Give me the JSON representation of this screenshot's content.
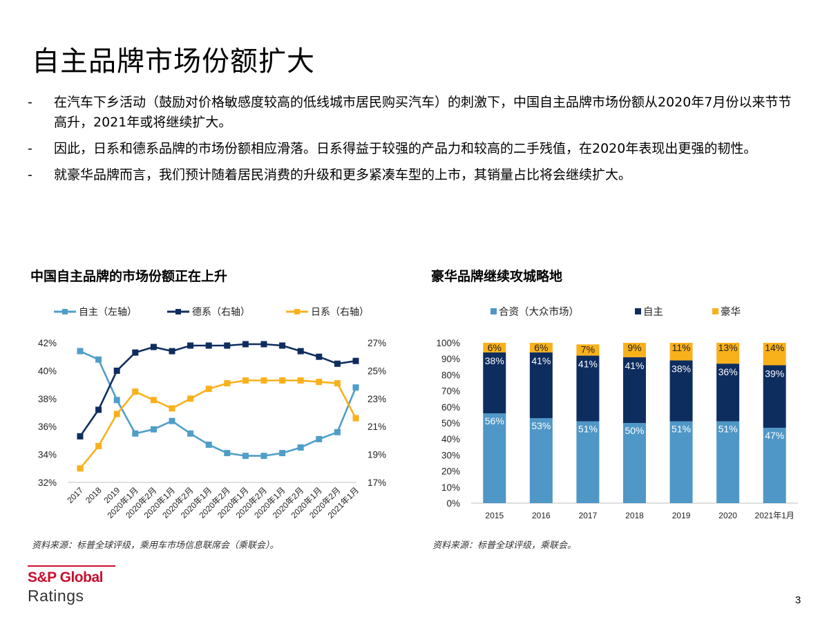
{
  "page": {
    "title": "自主品牌市场份额扩大",
    "bullets": [
      "在汽车下乡活动（鼓励对价格敏感度较高的低线城市居民购买汽车）的刺激下，中国自主品牌市场份额从2020年7月份以来节节高升，2021年或将继续扩大。",
      "因此，日系和德系品牌的市场份额相应滑落。日系得益于较强的产品力和较高的二手残值，在2020年表现出更强的韧性。",
      "就豪华品牌而言，我们预计随着居民消费的升级和更多紧凑车型的上市，其销量占比将会继续扩大。"
    ],
    "bullet_marker": "-",
    "page_number": "3",
    "logo": {
      "main": "S&P Global",
      "sub": "Ratings",
      "color": "#c8102e"
    }
  },
  "chart_data": [
    {
      "type": "line",
      "title": "中国自主品牌的市场份额正在上升",
      "source": "资料来源：标普全球评级，乘用车市场信息联席会（乘联会）。",
      "legend_position": "top",
      "categories": [
        "2017",
        "2018",
        "2019",
        "2020年1月",
        "2020年2月",
        "2020年1月",
        "2020年2月",
        "2020年1月",
        "2020年2月",
        "2020年1月",
        "2020年2月",
        "2020年1月",
        "2020年2月",
        "2020年1月",
        "2020年2月",
        "2021年1月"
      ],
      "ylim_left": [
        32,
        42
      ],
      "ylim_right": [
        17,
        27
      ],
      "yticks_left": [
        "32%",
        "34%",
        "36%",
        "38%",
        "40%",
        "42%"
      ],
      "yticks_right": [
        "17%",
        "19%",
        "21%",
        "23%",
        "25%",
        "27%"
      ],
      "grid": false,
      "series": [
        {
          "name": "自主（左轴）",
          "axis": "left",
          "color": "#4f9ec9",
          "values": [
            41.4,
            40.8,
            37.9,
            35.5,
            35.8,
            36.4,
            35.5,
            34.7,
            34.1,
            33.9,
            33.9,
            34.1,
            34.5,
            35.1,
            35.6,
            38.8
          ]
        },
        {
          "name": "德系（右轴）",
          "axis": "right",
          "color": "#0e2d5f",
          "values": [
            20.3,
            22.2,
            25.0,
            26.3,
            26.7,
            26.4,
            26.8,
            26.8,
            26.8,
            26.9,
            26.9,
            26.8,
            26.4,
            26.0,
            25.5,
            25.7
          ]
        },
        {
          "name": "日系（右轴）",
          "axis": "right",
          "color": "#f9b11b",
          "values": [
            18.0,
            19.6,
            21.9,
            23.5,
            22.9,
            22.3,
            23.0,
            23.7,
            24.1,
            24.3,
            24.3,
            24.3,
            24.3,
            24.2,
            24.1,
            21.6
          ]
        }
      ]
    },
    {
      "type": "bar",
      "stacked": true,
      "title": "豪华品牌继续攻城略地",
      "source": "资料来源：标普全球评级，乘联会。",
      "legend_position": "top",
      "categories": [
        "2015",
        "2016",
        "2017",
        "2018",
        "2019",
        "2020",
        "2021年1月"
      ],
      "ylim": [
        0,
        100
      ],
      "yticks": [
        "0%",
        "10%",
        "20%",
        "30%",
        "40%",
        "50%",
        "60%",
        "70%",
        "80%",
        "90%",
        "100%"
      ],
      "grid": false,
      "series": [
        {
          "name": "合资（大众市场）",
          "color": "#4f97c7",
          "values": [
            56,
            53,
            51,
            50,
            51,
            51,
            47
          ],
          "labels": [
            "56%",
            "53%",
            "51%",
            "50%",
            "51%",
            "51%",
            "47%"
          ]
        },
        {
          "name": "自主",
          "color": "#0e2d5f",
          "values": [
            38,
            41,
            41,
            41,
            38,
            36,
            39
          ],
          "labels": [
            "38%",
            "41%",
            "41%",
            "41%",
            "38%",
            "36%",
            "39%"
          ]
        },
        {
          "name": "豪华",
          "color": "#f9b11b",
          "values": [
            6,
            6,
            7,
            9,
            11,
            13,
            14
          ],
          "labels": [
            "6%",
            "6%",
            "7%",
            "9%",
            "11%",
            "13%",
            "14%"
          ]
        }
      ]
    }
  ]
}
